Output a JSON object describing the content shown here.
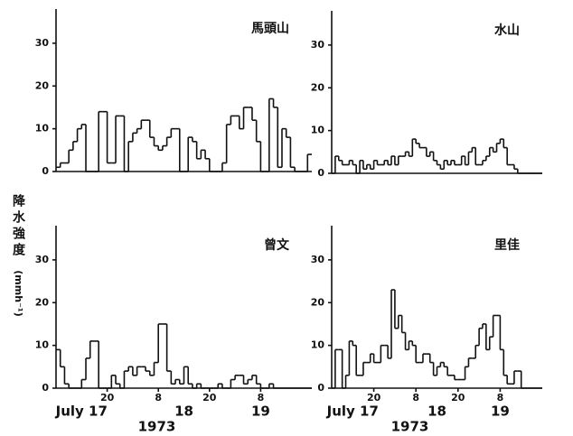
{
  "ylabel": "降水強度",
  "yunit": "(mmh⁻¹)",
  "chart_data": [
    {
      "type": "line",
      "step": true,
      "title": "馬頭山",
      "ylim": [
        0,
        38
      ],
      "yticks": [
        0,
        10,
        20,
        30
      ],
      "xlim": [
        0,
        60
      ],
      "x": [
        0,
        1,
        2,
        3,
        4,
        5,
        6,
        7,
        8,
        9,
        10,
        11,
        12,
        13,
        14,
        15,
        16,
        17,
        18,
        19,
        20,
        21,
        22,
        23,
        24,
        25,
        26,
        27,
        28,
        29,
        30,
        31,
        32,
        33,
        34,
        35,
        36,
        37,
        38,
        39,
        40,
        41,
        42,
        43,
        44,
        45,
        46,
        47,
        48,
        49,
        50,
        51,
        52,
        53,
        54,
        55,
        56,
        57,
        58,
        59
      ],
      "values": [
        1,
        2,
        2,
        5,
        7,
        10,
        11,
        0,
        0,
        0,
        14,
        14,
        2,
        2,
        13,
        13,
        0,
        7,
        9,
        10,
        12,
        12,
        8,
        6,
        5,
        6,
        8,
        10,
        10,
        0,
        0,
        8,
        7,
        3,
        5,
        3,
        0,
        0,
        0,
        2,
        11,
        13,
        13,
        10,
        15,
        15,
        12,
        7,
        0,
        0,
        17,
        15,
        1,
        10,
        8,
        1,
        0,
        0,
        0,
        4
      ]
    },
    {
      "type": "line",
      "step": true,
      "title": "水山",
      "ylim": [
        0,
        38
      ],
      "yticks": [
        0,
        10,
        20,
        30
      ],
      "xlim": [
        0,
        60
      ],
      "x": [
        0,
        1,
        2,
        3,
        4,
        5,
        6,
        7,
        8,
        9,
        10,
        11,
        12,
        13,
        14,
        15,
        16,
        17,
        18,
        19,
        20,
        21,
        22,
        23,
        24,
        25,
        26,
        27,
        28,
        29,
        30,
        31,
        32,
        33,
        34,
        35,
        36,
        37,
        38,
        39,
        40,
        41,
        42,
        43,
        44,
        45,
        46,
        47,
        48,
        49,
        50,
        51,
        52,
        53,
        54,
        55,
        56,
        57,
        58,
        59
      ],
      "values": [
        0,
        4,
        3,
        2,
        2,
        3,
        2,
        0,
        3,
        1,
        2,
        1,
        3,
        2,
        2,
        3,
        2,
        4,
        2,
        4,
        4,
        5,
        4,
        8,
        7,
        6,
        6,
        4,
        5,
        3,
        2,
        1,
        3,
        2,
        3,
        2,
        2,
        4,
        2,
        5,
        6,
        2,
        2,
        3,
        4,
        6,
        5,
        7,
        8,
        6,
        2,
        2,
        1,
        0,
        0,
        0,
        0,
        0,
        0,
        0
      ]
    },
    {
      "type": "line",
      "step": true,
      "title": "曾文",
      "ylim": [
        0,
        38
      ],
      "yticks": [
        0,
        10,
        20,
        30
      ],
      "xlim": [
        0,
        60
      ],
      "xticks": [
        {
          "value": 12,
          "label": "20"
        },
        {
          "value": 24,
          "label": "8"
        },
        {
          "value": 36,
          "label": "20"
        },
        {
          "value": 48,
          "label": "8"
        }
      ],
      "day_labels": [
        {
          "value": 6,
          "label": "July 17"
        },
        {
          "value": 30,
          "label": "18"
        },
        {
          "value": 48,
          "label": "19"
        }
      ],
      "xlabel": "1973",
      "x": [
        0,
        1,
        2,
        3,
        4,
        5,
        6,
        7,
        8,
        9,
        10,
        11,
        12,
        13,
        14,
        15,
        16,
        17,
        18,
        19,
        20,
        21,
        22,
        23,
        24,
        25,
        26,
        27,
        28,
        29,
        30,
        31,
        32,
        33,
        34,
        35,
        36,
        37,
        38,
        39,
        40,
        41,
        42,
        43,
        44,
        45,
        46,
        47,
        48,
        49,
        50,
        51,
        52,
        53,
        54,
        55,
        56,
        57,
        58,
        59
      ],
      "values": [
        9,
        5,
        1,
        0,
        0,
        0,
        2,
        7,
        11,
        11,
        0,
        0,
        0,
        3,
        1,
        0,
        4,
        5,
        3,
        5,
        5,
        4,
        3,
        6,
        15,
        15,
        4,
        1,
        2,
        1,
        5,
        1,
        0,
        1,
        0,
        0,
        0,
        0,
        1,
        0,
        0,
        2,
        3,
        3,
        1,
        2,
        3,
        1,
        0,
        0,
        1,
        0,
        0,
        0,
        0,
        0,
        0,
        0,
        0,
        0
      ]
    },
    {
      "type": "line",
      "step": true,
      "title": "里佳",
      "ylim": [
        0,
        38
      ],
      "yticks": [
        0,
        10,
        20,
        30
      ],
      "xlim": [
        0,
        60
      ],
      "xticks": [
        {
          "value": 12,
          "label": "20"
        },
        {
          "value": 24,
          "label": "8"
        },
        {
          "value": 36,
          "label": "20"
        },
        {
          "value": 48,
          "label": "8"
        }
      ],
      "day_labels": [
        {
          "value": 6,
          "label": "July 17"
        },
        {
          "value": 30,
          "label": "18"
        },
        {
          "value": 48,
          "label": "19"
        }
      ],
      "xlabel": "1973",
      "x": [
        0,
        1,
        2,
        3,
        4,
        5,
        6,
        7,
        8,
        9,
        10,
        11,
        12,
        13,
        14,
        15,
        16,
        17,
        18,
        19,
        20,
        21,
        22,
        23,
        24,
        25,
        26,
        27,
        28,
        29,
        30,
        31,
        32,
        33,
        34,
        35,
        36,
        37,
        38,
        39,
        40,
        41,
        42,
        43,
        44,
        45,
        46,
        47,
        48,
        49,
        50,
        51,
        52,
        53,
        54,
        55,
        56,
        57,
        58,
        59
      ],
      "values": [
        0,
        9,
        9,
        0,
        3,
        11,
        10,
        3,
        3,
        6,
        6,
        8,
        6,
        6,
        10,
        10,
        7,
        23,
        14,
        17,
        13,
        9,
        11,
        10,
        6,
        6,
        8,
        8,
        6,
        3,
        5,
        6,
        5,
        3,
        3,
        2,
        2,
        2,
        5,
        7,
        7,
        10,
        14,
        15,
        9,
        12,
        17,
        17,
        9,
        3,
        1,
        1,
        4,
        4,
        0,
        0,
        0,
        0,
        0,
        0
      ]
    }
  ]
}
